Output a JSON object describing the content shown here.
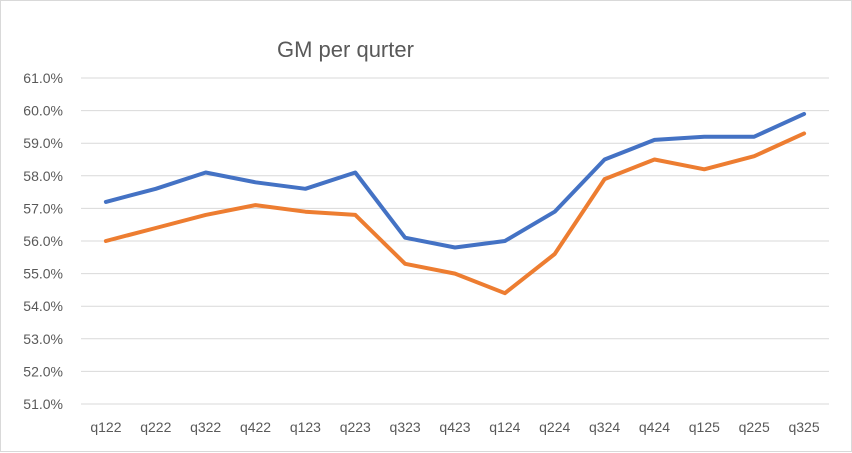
{
  "chart_data": {
    "type": "line",
    "title": "GM per qurter",
    "xlabel": "",
    "ylabel": "",
    "categories": [
      "q122",
      "q222",
      "q322",
      "q422",
      "q123",
      "q223",
      "q323",
      "q423",
      "q124",
      "q224",
      "q324",
      "q424",
      "q125",
      "q225",
      "q325"
    ],
    "series": [
      {
        "color": "#4472c4",
        "values": [
          57.2,
          57.6,
          58.1,
          57.8,
          57.6,
          58.1,
          56.1,
          55.8,
          56.0,
          56.9,
          58.5,
          59.1,
          59.2,
          59.2,
          59.9
        ]
      },
      {
        "color": "#ed7d31",
        "values": [
          56.0,
          56.4,
          56.8,
          57.1,
          56.9,
          56.8,
          55.3,
          55.0,
          54.4,
          55.6,
          57.9,
          58.5,
          58.2,
          58.6,
          59.3
        ]
      }
    ],
    "ylim": [
      51.0,
      61.0
    ],
    "yticks": [
      "51.0%",
      "52.0%",
      "53.0%",
      "54.0%",
      "55.0%",
      "56.0%",
      "57.0%",
      "58.0%",
      "59.0%",
      "60.0%",
      "61.0%"
    ],
    "grid": true,
    "legend": "none"
  }
}
